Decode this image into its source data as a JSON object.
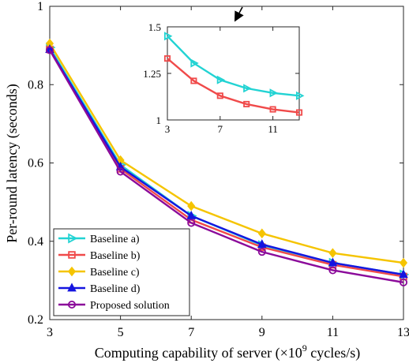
{
  "chart_data": {
    "type": "line",
    "title": "",
    "xlabel": "Computing capability of server (×10",
    "xlabel_sup": "9",
    "xlabel_suffix": " cycles/s)",
    "ylabel": "Per-round latency (seconds)",
    "x": [
      3,
      5,
      7,
      9,
      11,
      13
    ],
    "xlim": [
      3,
      13
    ],
    "ylim": [
      0.2,
      1.0
    ],
    "xticks": [
      "3",
      "5",
      "7",
      "9",
      "11",
      "13"
    ],
    "yticks": [
      "0.2",
      "0.4",
      "0.6",
      "0.8",
      "1"
    ],
    "grid": false,
    "legend_position": "lower-left",
    "series": [
      {
        "name": "Baseline a)",
        "color": "#22d3d3",
        "marker": "triangle-right",
        "values": [
          0.895,
          0.595,
          0.465,
          0.39,
          0.345,
          0.315
        ]
      },
      {
        "name": "Baseline b)",
        "color": "#f04a4a",
        "marker": "square",
        "values": [
          0.89,
          0.585,
          0.455,
          0.385,
          0.34,
          0.31
        ]
      },
      {
        "name": "Baseline c)",
        "color": "#f5c400",
        "marker": "diamond",
        "values": [
          0.905,
          0.607,
          0.49,
          0.42,
          0.37,
          0.345
        ]
      },
      {
        "name": "Baseline d)",
        "color": "#1515e0",
        "marker": "triangle-up",
        "values": [
          0.89,
          0.59,
          0.465,
          0.392,
          0.345,
          0.315
        ]
      },
      {
        "name": "Proposed solution",
        "color": "#8b0a9a",
        "marker": "circle",
        "values": [
          0.888,
          0.578,
          0.447,
          0.373,
          0.326,
          0.295
        ]
      }
    ],
    "inset": {
      "x": [
        3,
        5,
        7,
        9,
        11,
        13
      ],
      "xlim": [
        3,
        13
      ],
      "ylim": [
        1.0,
        1.5
      ],
      "xticks": [
        "3",
        "7",
        "11"
      ],
      "yticks": [
        "1",
        "1.25",
        "1.5"
      ],
      "series": [
        {
          "name": "Baseline a)",
          "color": "#22d3d3",
          "marker": "triangle-right",
          "values": [
            1.45,
            1.305,
            1.215,
            1.17,
            1.145,
            1.13
          ]
        },
        {
          "name": "Baseline b)",
          "color": "#f04a4a",
          "marker": "square",
          "values": [
            1.33,
            1.21,
            1.13,
            1.085,
            1.057,
            1.04
          ]
        }
      ]
    }
  }
}
